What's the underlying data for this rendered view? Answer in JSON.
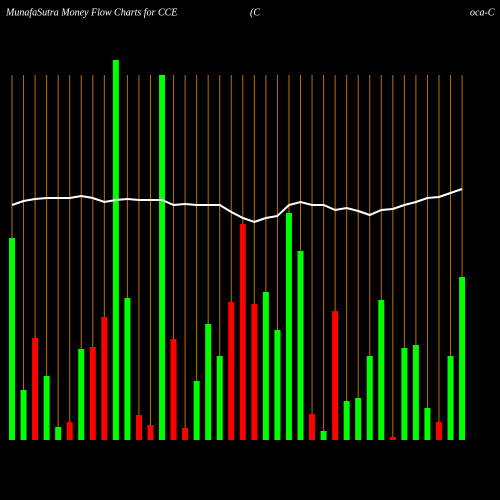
{
  "chart_data": {
    "type": "bar",
    "title": "MunafaSutra  Money Flow  Charts for CCE",
    "subtitle_left": "(C",
    "subtitle_right": "oca-C",
    "categories": [
      null,
      null,
      null,
      null,
      null,
      null,
      null,
      null,
      null,
      null,
      null,
      null,
      null,
      null,
      null,
      null,
      null,
      null,
      null,
      null,
      null,
      null,
      null,
      null,
      null,
      null,
      null,
      null,
      null,
      null,
      null,
      null,
      null,
      null,
      null,
      null,
      null,
      null,
      null,
      null
    ],
    "ylim": [
      0,
      380
    ],
    "grid_color": "#b8700b",
    "series": [
      {
        "type": "bar",
        "values": [
          202,
          50,
          102,
          64,
          13,
          18,
          91,
          93,
          123,
          380,
          142,
          25,
          15,
          365,
          101,
          12,
          59,
          116,
          84,
          138,
          216,
          136,
          148,
          110,
          227,
          189,
          26,
          9,
          129,
          39,
          42,
          84,
          140,
          3,
          92,
          95,
          32,
          18,
          84,
          163
        ],
        "colors": [
          "#00ff00",
          "#00ff00",
          "#ff0000",
          "#00ff00",
          "#00ff00",
          "#ff0000",
          "#00ff00",
          "#ff0000",
          "#ff0000",
          "#00ff00",
          "#00ff00",
          "#ff0000",
          "#ff0000",
          "#00ff00",
          "#ff0000",
          "#ff0000",
          "#00ff00",
          "#00ff00",
          "#00ff00",
          "#ff0000",
          "#ff0000",
          "#ff0000",
          "#00ff00",
          "#00ff00",
          "#00ff00",
          "#00ff00",
          "#ff0000",
          "#00ff00",
          "#ff0000",
          "#00ff00",
          "#00ff00",
          "#00ff00",
          "#00ff00",
          "#ff0000",
          "#00ff00",
          "#00ff00",
          "#00ff00",
          "#ff0000",
          "#00ff00",
          "#00ff00"
        ]
      },
      {
        "type": "line",
        "color": "#ffffff",
        "values": [
          235,
          239,
          241,
          242,
          242,
          242,
          244,
          242,
          238,
          240,
          241,
          240,
          240,
          240,
          235,
          236,
          235,
          235,
          235,
          228,
          222,
          218,
          222,
          224,
          235,
          238,
          235,
          235,
          230,
          232,
          229,
          225,
          230,
          231,
          235,
          238,
          242,
          243,
          247,
          251
        ]
      }
    ]
  }
}
